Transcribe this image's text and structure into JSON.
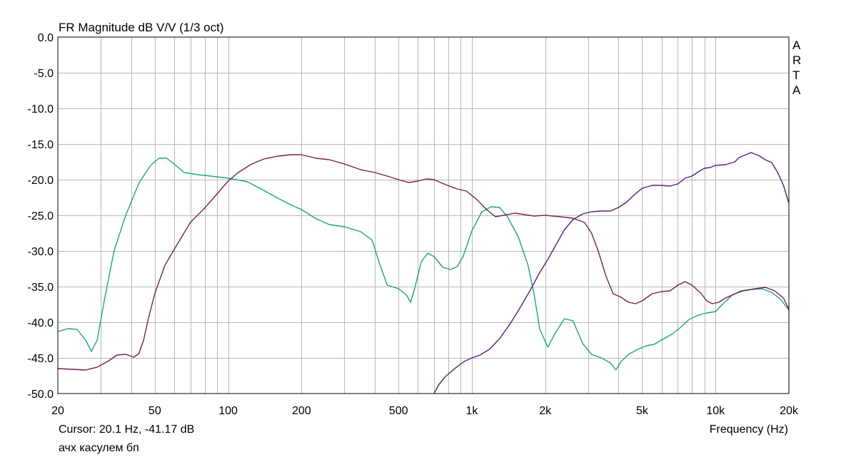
{
  "title": "FR Magnitude dB V/V (1/3 oct)",
  "brand": [
    "A",
    "R",
    "T",
    "A"
  ],
  "cursor_readout": "Cursor: 20.1 Hz, -41.17 dB",
  "caption": "ачх касулем бп",
  "x_axis_label": "Frequency (Hz)",
  "chart_data": {
    "type": "line",
    "title": "FR Magnitude dB V/V (1/3 oct)",
    "xlabel": "Frequency (Hz)",
    "ylabel": "",
    "xscale": "log",
    "xlim": [
      20,
      20000
    ],
    "ylim": [
      -50,
      0
    ],
    "grid": true,
    "x_ticks": [
      {
        "v": 20,
        "label": "20"
      },
      {
        "v": 50,
        "label": "50"
      },
      {
        "v": 100,
        "label": "100"
      },
      {
        "v": 200,
        "label": "200"
      },
      {
        "v": 500,
        "label": "500"
      },
      {
        "v": 1000,
        "label": "1k"
      },
      {
        "v": 2000,
        "label": "2k"
      },
      {
        "v": 5000,
        "label": "5k"
      },
      {
        "v": 10000,
        "label": "10k"
      },
      {
        "v": 20000,
        "label": "20k"
      }
    ],
    "y_ticks": [
      {
        "v": 0,
        "label": "0.0"
      },
      {
        "v": -5,
        "label": "-5.0"
      },
      {
        "v": -10,
        "label": "-10.0"
      },
      {
        "v": -15,
        "label": "-15.0"
      },
      {
        "v": -20,
        "label": "-20.0"
      },
      {
        "v": -25,
        "label": "-25.0"
      },
      {
        "v": -30,
        "label": "-30.0"
      },
      {
        "v": -35,
        "label": "-35.0"
      },
      {
        "v": -40,
        "label": "-40.0"
      },
      {
        "v": -45,
        "label": "-45.0"
      },
      {
        "v": -50,
        "label": "-50.0"
      }
    ],
    "series": [
      {
        "color": "#1aa680",
        "points": [
          [
            20,
            -41.3
          ],
          [
            22,
            -40.9
          ],
          [
            24,
            -41.0
          ],
          [
            26,
            -42.5
          ],
          [
            27.5,
            -44.1
          ],
          [
            29,
            -42.5
          ],
          [
            31,
            -37
          ],
          [
            34,
            -30
          ],
          [
            38,
            -25
          ],
          [
            43,
            -20.5
          ],
          [
            48,
            -18
          ],
          [
            52,
            -17
          ],
          [
            56,
            -17
          ],
          [
            60,
            -17.8
          ],
          [
            66,
            -19
          ],
          [
            75,
            -19.3
          ],
          [
            85,
            -19.5
          ],
          [
            100,
            -19.8
          ],
          [
            120,
            -20.3
          ],
          [
            140,
            -21.5
          ],
          [
            160,
            -22.6
          ],
          [
            180,
            -23.5
          ],
          [
            200,
            -24.2
          ],
          [
            230,
            -25.5
          ],
          [
            260,
            -26.3
          ],
          [
            300,
            -26.6
          ],
          [
            350,
            -27.3
          ],
          [
            390,
            -28.5
          ],
          [
            420,
            -32
          ],
          [
            450,
            -34.8
          ],
          [
            500,
            -35.3
          ],
          [
            540,
            -36.2
          ],
          [
            560,
            -37.2
          ],
          [
            580,
            -35.5
          ],
          [
            620,
            -31.5
          ],
          [
            660,
            -30.3
          ],
          [
            700,
            -30.8
          ],
          [
            760,
            -32.3
          ],
          [
            820,
            -32.6
          ],
          [
            870,
            -32.2
          ],
          [
            920,
            -30.8
          ],
          [
            1000,
            -27.2
          ],
          [
            1100,
            -24.5
          ],
          [
            1200,
            -23.8
          ],
          [
            1300,
            -23.9
          ],
          [
            1400,
            -25.2
          ],
          [
            1550,
            -28
          ],
          [
            1700,
            -32
          ],
          [
            1800,
            -36
          ],
          [
            1900,
            -41
          ],
          [
            2050,
            -43.5
          ],
          [
            2200,
            -41.5
          ],
          [
            2400,
            -39.5
          ],
          [
            2600,
            -39.8
          ],
          [
            2850,
            -43
          ],
          [
            3100,
            -44.5
          ],
          [
            3400,
            -45
          ],
          [
            3700,
            -45.7
          ],
          [
            3900,
            -46.7
          ],
          [
            4100,
            -45.5
          ],
          [
            4400,
            -44.5
          ],
          [
            4800,
            -43.8
          ],
          [
            5200,
            -43.3
          ],
          [
            5600,
            -43.1
          ],
          [
            6000,
            -42.5
          ],
          [
            6600,
            -41.7
          ],
          [
            7200,
            -40.7
          ],
          [
            7800,
            -39.6
          ],
          [
            8500,
            -39
          ],
          [
            9200,
            -38.7
          ],
          [
            10000,
            -38.5
          ],
          [
            10800,
            -37.3
          ],
          [
            11700,
            -36.2
          ],
          [
            12700,
            -35.6
          ],
          [
            14000,
            -35.4
          ],
          [
            15500,
            -35.3
          ],
          [
            17000,
            -35.8
          ],
          [
            18500,
            -36.8
          ],
          [
            20000,
            -38.3
          ]
        ]
      },
      {
        "color": "#7a1f4e",
        "points": [
          [
            20,
            -46.5
          ],
          [
            23,
            -46.6
          ],
          [
            26,
            -46.7
          ],
          [
            29,
            -46.3
          ],
          [
            32,
            -45.5
          ],
          [
            35,
            -44.6
          ],
          [
            38,
            -44.5
          ],
          [
            41,
            -44.9
          ],
          [
            43,
            -44.4
          ],
          [
            45,
            -42.5
          ],
          [
            47,
            -39.5
          ],
          [
            50,
            -36
          ],
          [
            55,
            -32
          ],
          [
            62,
            -29
          ],
          [
            70,
            -26
          ],
          [
            80,
            -24
          ],
          [
            90,
            -22
          ],
          [
            100,
            -20.2
          ],
          [
            110,
            -19
          ],
          [
            125,
            -17.8
          ],
          [
            140,
            -17.1
          ],
          [
            160,
            -16.7
          ],
          [
            180,
            -16.5
          ],
          [
            200,
            -16.5
          ],
          [
            230,
            -17
          ],
          [
            260,
            -17.2
          ],
          [
            300,
            -17.8
          ],
          [
            350,
            -18.6
          ],
          [
            400,
            -19
          ],
          [
            450,
            -19.5
          ],
          [
            500,
            -20
          ],
          [
            550,
            -20.4
          ],
          [
            600,
            -20.2
          ],
          [
            650,
            -19.9
          ],
          [
            700,
            -20
          ],
          [
            780,
            -20.7
          ],
          [
            870,
            -21.3
          ],
          [
            950,
            -21.6
          ],
          [
            1050,
            -22.8
          ],
          [
            1150,
            -24.2
          ],
          [
            1250,
            -25.2
          ],
          [
            1350,
            -25
          ],
          [
            1500,
            -24.7
          ],
          [
            1650,
            -24.9
          ],
          [
            1800,
            -25.1
          ],
          [
            2000,
            -25
          ],
          [
            2300,
            -25.2
          ],
          [
            2600,
            -25.4
          ],
          [
            2900,
            -26
          ],
          [
            3100,
            -27.5
          ],
          [
            3300,
            -30
          ],
          [
            3550,
            -33.5
          ],
          [
            3800,
            -36
          ],
          [
            4100,
            -36.5
          ],
          [
            4400,
            -37.2
          ],
          [
            4700,
            -37.4
          ],
          [
            5000,
            -37
          ],
          [
            5500,
            -36
          ],
          [
            6000,
            -35.7
          ],
          [
            6500,
            -35.6
          ],
          [
            7000,
            -34.8
          ],
          [
            7500,
            -34.3
          ],
          [
            8000,
            -34.8
          ],
          [
            8700,
            -35.9
          ],
          [
            9200,
            -37
          ],
          [
            9700,
            -37.4
          ],
          [
            10300,
            -37.2
          ],
          [
            11000,
            -36.6
          ],
          [
            12000,
            -36
          ],
          [
            13000,
            -35.6
          ],
          [
            14500,
            -35.3
          ],
          [
            16000,
            -35.1
          ],
          [
            17500,
            -35.6
          ],
          [
            19000,
            -36.6
          ],
          [
            20000,
            -38.2
          ]
        ]
      },
      {
        "color": "#5c1c7c",
        "points": [
          [
            700,
            -50
          ],
          [
            730,
            -48.8
          ],
          [
            780,
            -47.6
          ],
          [
            850,
            -46.5
          ],
          [
            930,
            -45.5
          ],
          [
            1000,
            -45
          ],
          [
            1080,
            -44.6
          ],
          [
            1180,
            -43.8
          ],
          [
            1300,
            -42.3
          ],
          [
            1450,
            -40
          ],
          [
            1600,
            -37.6
          ],
          [
            1750,
            -35.3
          ],
          [
            1900,
            -33
          ],
          [
            2050,
            -31.2
          ],
          [
            2200,
            -29.3
          ],
          [
            2400,
            -27
          ],
          [
            2600,
            -25.6
          ],
          [
            2850,
            -24.8
          ],
          [
            3100,
            -24.5
          ],
          [
            3400,
            -24.4
          ],
          [
            3700,
            -24.4
          ],
          [
            4000,
            -23.9
          ],
          [
            4300,
            -23.2
          ],
          [
            4650,
            -22.1
          ],
          [
            5000,
            -21.2
          ],
          [
            5500,
            -20.8
          ],
          [
            6000,
            -20.8
          ],
          [
            6500,
            -20.9
          ],
          [
            7000,
            -20.6
          ],
          [
            7500,
            -19.8
          ],
          [
            8000,
            -19.5
          ],
          [
            8500,
            -18.9
          ],
          [
            9000,
            -18.4
          ],
          [
            9500,
            -18.3
          ],
          [
            10000,
            -18
          ],
          [
            11000,
            -17.9
          ],
          [
            12000,
            -17.5
          ],
          [
            12500,
            -16.9
          ],
          [
            13300,
            -16.5
          ],
          [
            14000,
            -16.2
          ],
          [
            15000,
            -16.6
          ],
          [
            16000,
            -17.2
          ],
          [
            17000,
            -17.6
          ],
          [
            18000,
            -19
          ],
          [
            19000,
            -20.8
          ],
          [
            20000,
            -23.3
          ]
        ]
      }
    ]
  }
}
